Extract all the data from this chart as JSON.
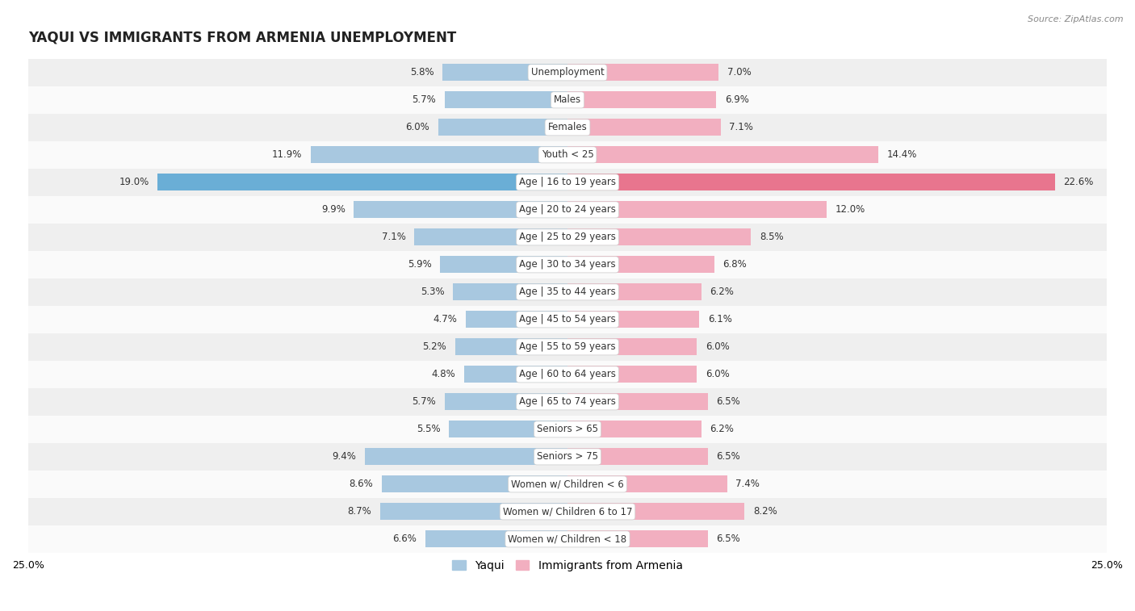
{
  "title": "YAQUI VS IMMIGRANTS FROM ARMENIA UNEMPLOYMENT",
  "source": "Source: ZipAtlas.com",
  "categories": [
    "Unemployment",
    "Males",
    "Females",
    "Youth < 25",
    "Age | 16 to 19 years",
    "Age | 20 to 24 years",
    "Age | 25 to 29 years",
    "Age | 30 to 34 years",
    "Age | 35 to 44 years",
    "Age | 45 to 54 years",
    "Age | 55 to 59 years",
    "Age | 60 to 64 years",
    "Age | 65 to 74 years",
    "Seniors > 65",
    "Seniors > 75",
    "Women w/ Children < 6",
    "Women w/ Children 6 to 17",
    "Women w/ Children < 18"
  ],
  "yaqui": [
    5.8,
    5.7,
    6.0,
    11.9,
    19.0,
    9.9,
    7.1,
    5.9,
    5.3,
    4.7,
    5.2,
    4.8,
    5.7,
    5.5,
    9.4,
    8.6,
    8.7,
    6.6
  ],
  "armenia": [
    7.0,
    6.9,
    7.1,
    14.4,
    22.6,
    12.0,
    8.5,
    6.8,
    6.2,
    6.1,
    6.0,
    6.0,
    6.5,
    6.2,
    6.5,
    7.4,
    8.2,
    6.5
  ],
  "yaqui_color": "#a8c8e0",
  "armenia_color": "#f2afc0",
  "yaqui_highlight_color": "#6aaed6",
  "armenia_highlight_color": "#e8758e",
  "highlight_row": 4,
  "xlim": 25.0,
  "row_bg_odd": "#efefef",
  "row_bg_even": "#fafafa",
  "label_fontsize": 8.5,
  "title_fontsize": 12,
  "legend_fontsize": 10,
  "axis_label_fontsize": 9,
  "bar_height": 0.62
}
